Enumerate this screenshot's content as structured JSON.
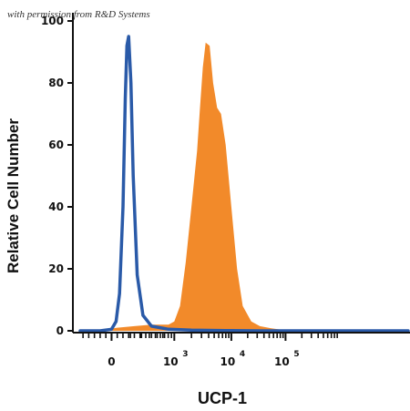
{
  "attribution": "with permission from R&D Systems",
  "colors": {
    "control_outline": "#2a5aa8",
    "ucp1_fill": "#f28a2a",
    "axis": "#111111"
  },
  "chart_data": {
    "type": "area",
    "title": "",
    "xlabel": "UCP-1",
    "ylabel": "Relative Cell Number",
    "x_scale": "biexponential",
    "x_ticks": [
      {
        "base": "0",
        "exp": ""
      },
      {
        "base": "10",
        "exp": "3"
      },
      {
        "base": "10",
        "exp": "4"
      },
      {
        "base": "10",
        "exp": "5"
      }
    ],
    "y_ticks": [
      0,
      20,
      40,
      60,
      80,
      100
    ],
    "ylim": [
      0,
      100
    ],
    "grid": false,
    "series": [
      {
        "style": "outline",
        "color": "#2a5aa8",
        "x": [
          -0.55,
          -0.2,
          0.0,
          0.08,
          0.14,
          0.2,
          0.24,
          0.27,
          0.3,
          0.34,
          0.38,
          0.45,
          0.55,
          0.7,
          1.0,
          1.4,
          2.0,
          2.6,
          3.2,
          4.0,
          5.2
        ],
        "y": [
          0,
          0,
          0.5,
          3,
          12,
          40,
          75,
          92,
          95,
          80,
          50,
          18,
          5,
          1.5,
          0.5,
          0.2,
          0.1,
          0,
          0,
          0,
          0
        ]
      },
      {
        "style": "filled",
        "color": "#f28a2a",
        "x": [
          -0.55,
          -0.1,
          0.1,
          0.4,
          0.7,
          0.9,
          1.0,
          1.1,
          1.2,
          1.3,
          1.4,
          1.5,
          1.55,
          1.6,
          1.65,
          1.72,
          1.78,
          1.85,
          1.92,
          2.0,
          2.1,
          2.2,
          2.3,
          2.45,
          2.6,
          2.8,
          3.0,
          3.4,
          4.0,
          5.2
        ],
        "y": [
          0,
          0.5,
          1,
          1.5,
          2,
          2,
          2,
          3,
          8,
          22,
          40,
          58,
          72,
          85,
          93,
          92,
          80,
          72,
          70,
          60,
          40,
          20,
          8,
          3,
          1.5,
          0.8,
          0.3,
          0.1,
          0,
          0
        ]
      }
    ]
  }
}
